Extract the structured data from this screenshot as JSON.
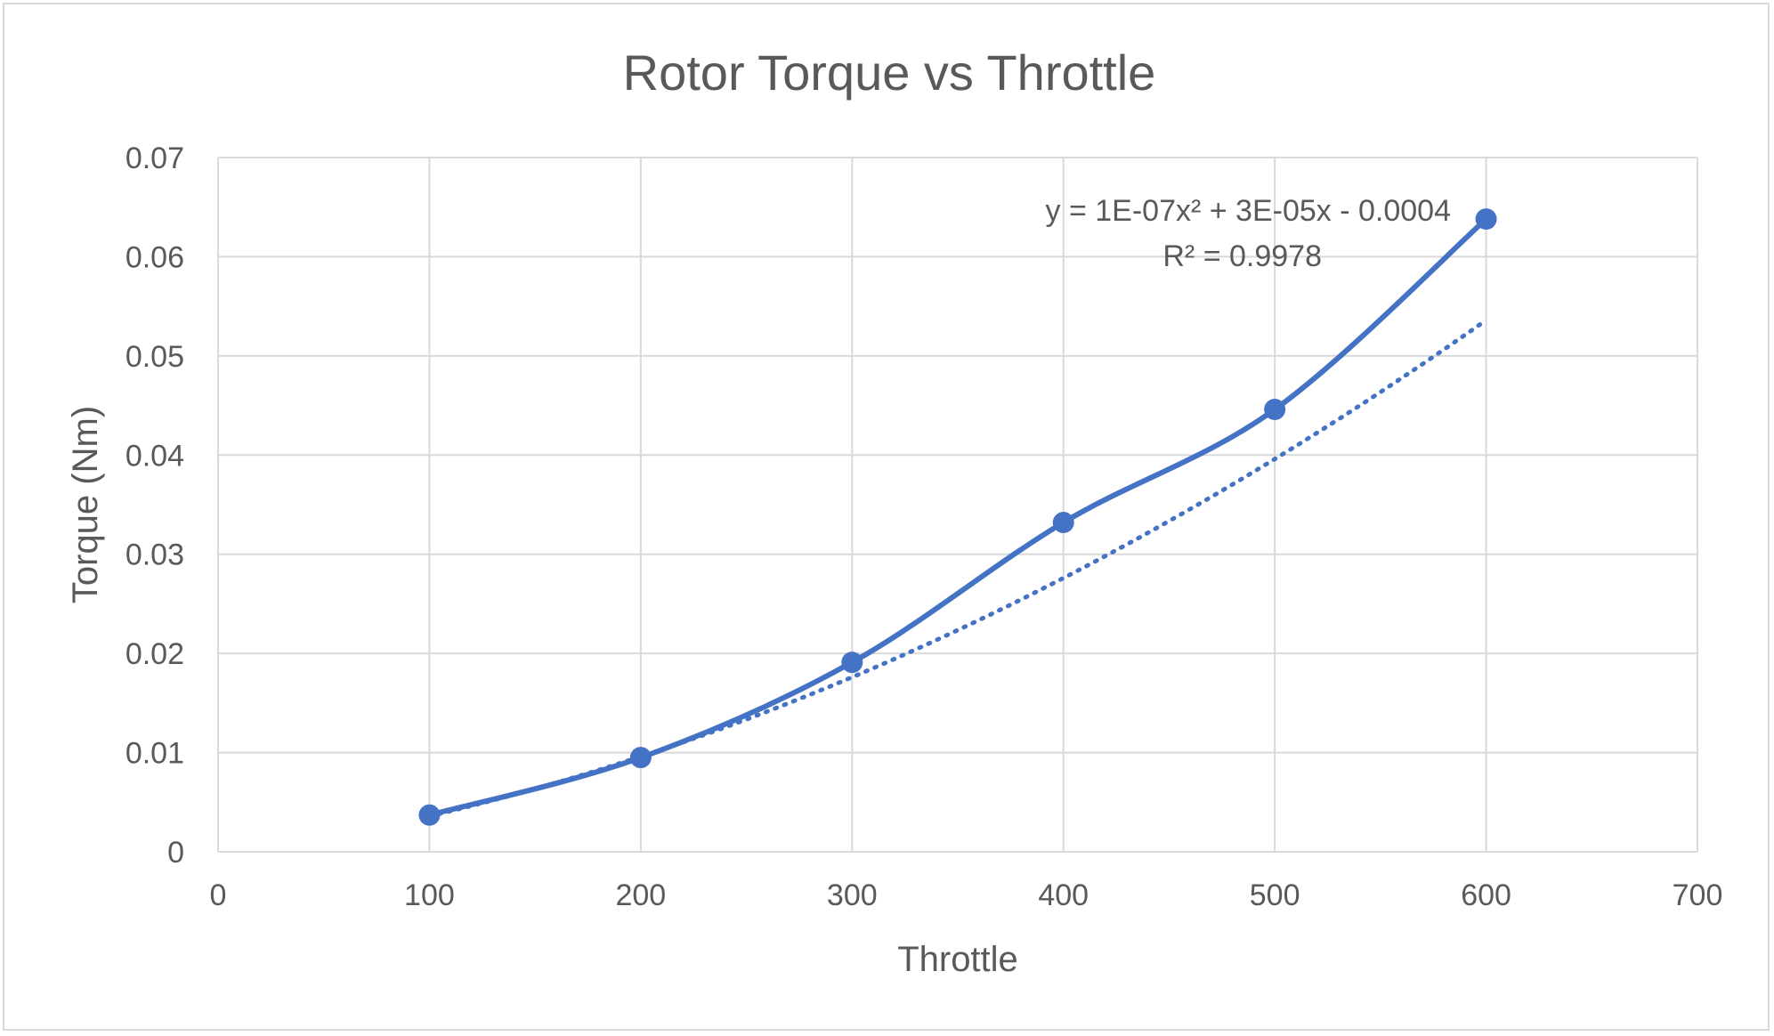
{
  "chart_data": {
    "type": "scatter",
    "title": "Rotor Torque vs Throttle",
    "xlabel": "Throttle",
    "ylabel": "Torque (Nm)",
    "xlim": [
      0,
      700
    ],
    "ylim": [
      0,
      0.07
    ],
    "x_ticks": [
      0,
      100,
      200,
      300,
      400,
      500,
      600,
      700
    ],
    "y_ticks": [
      0,
      0.01,
      0.02,
      0.03,
      0.04,
      0.05,
      0.06,
      0.07
    ],
    "x_tick_labels": [
      "0",
      "100",
      "200",
      "300",
      "400",
      "500",
      "600",
      "700"
    ],
    "y_tick_labels": [
      "0",
      "0.01",
      "0.02",
      "0.03",
      "0.04",
      "0.05",
      "0.06",
      "0.07"
    ],
    "grid": true,
    "series": [
      {
        "x": [
          100,
          200,
          300,
          400,
          500,
          600
        ],
        "y": [
          0.0037,
          0.0095,
          0.0191,
          0.0332,
          0.0446,
          0.0638
        ],
        "color": "#4472c4",
        "line": "smooth",
        "markers": true
      }
    ],
    "trendline": {
      "type": "polynomial",
      "order": 2,
      "style": "dotted",
      "color": "#4472c4",
      "coefficients": [
        1e-07,
        3e-05,
        -0.0004
      ],
      "x_range": [
        100,
        600
      ],
      "equation": "y = 1E-07x² + 3E-05x - 0.0004",
      "r_squared": "R² = 0.9978"
    }
  }
}
